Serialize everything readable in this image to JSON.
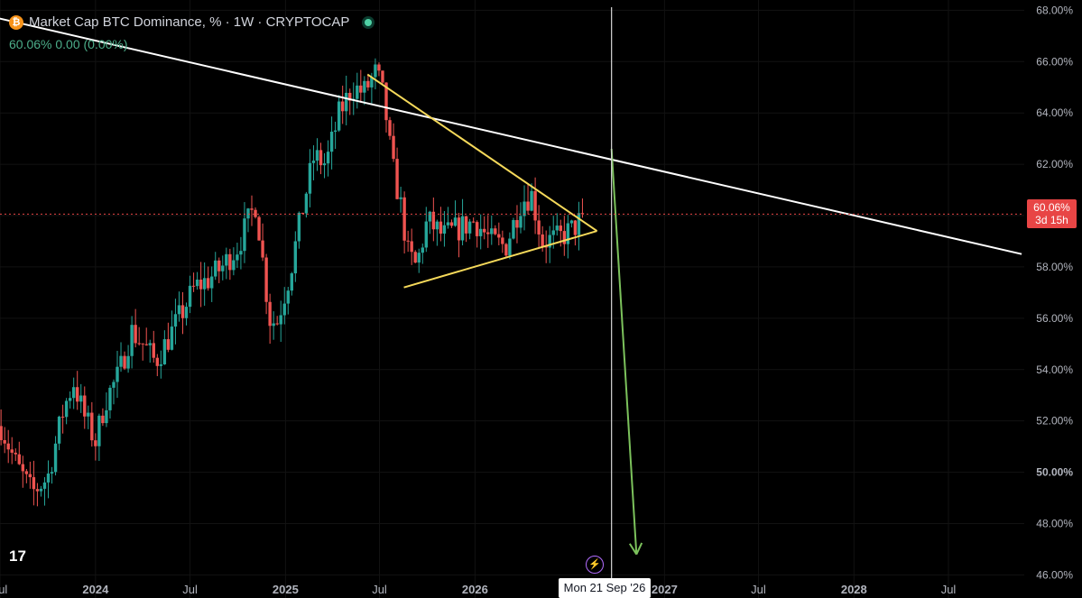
{
  "header": {
    "title": "Market Cap BTC Dominance, % · 1W · CRYPTOCAP",
    "quote": "60.06%  0.00 (0.00%)"
  },
  "price_tag": {
    "value": "60.06%",
    "countdown": "3d 15h",
    "color": "#e84545"
  },
  "crosshair_date": "Mon 21 Sep '26",
  "logo_text": "17",
  "colors": {
    "up": "#26a69a",
    "down": "#ef5350",
    "trendline": "#ffffff",
    "triangle": "#f5d95a",
    "arrow": "#7cc25c"
  },
  "chart_data": {
    "type": "candlestick",
    "title": "Market Cap BTC Dominance, % · 1W · CRYPTOCAP",
    "ylim": [
      45.1,
      68.4
    ],
    "xlim": [
      "2023-07-01",
      "2028-11-24"
    ],
    "y_ticks": [
      46,
      48,
      50,
      52,
      54,
      56,
      58,
      60,
      62,
      64,
      66,
      68
    ],
    "y_tick_labels": [
      "46.00%",
      "48.00%",
      "50.00%",
      "52.00%",
      "54.00%",
      "56.00%",
      "58.00%",
      "60.00%",
      "62.00%",
      "64.00%",
      "66.00%",
      "68.00%"
    ],
    "x_ticks": [
      {
        "label": "Jul",
        "date": "2023-07-01",
        "bold": false
      },
      {
        "label": "2024",
        "date": "2024-01-01",
        "bold": true
      },
      {
        "label": "Jul",
        "date": "2024-07-01",
        "bold": false
      },
      {
        "label": "2025",
        "date": "2025-01-01",
        "bold": true
      },
      {
        "label": "Jul",
        "date": "2025-07-01",
        "bold": false
      },
      {
        "label": "2026",
        "date": "2026-01-01",
        "bold": true
      },
      {
        "label": "2027",
        "date": "2027-01-01",
        "bold": true
      },
      {
        "label": "Jul",
        "date": "2027-07-01",
        "bold": false
      },
      {
        "label": "2028",
        "date": "2028-01-01",
        "bold": true
      },
      {
        "label": "Jul",
        "date": "2028-07-01",
        "bold": false
      }
    ],
    "close_path": [
      [
        "2023-07-03",
        51.8
      ],
      [
        "2023-08-01",
        50.3
      ],
      [
        "2023-09-01",
        49.2
      ],
      [
        "2023-10-01",
        49.8
      ],
      [
        "2023-11-01",
        52.5
      ],
      [
        "2023-11-20",
        53.5
      ],
      [
        "2023-12-10",
        52.2
      ],
      [
        "2024-01-01",
        51.2
      ],
      [
        "2024-01-20",
        52.8
      ],
      [
        "2024-02-15",
        53.8
      ],
      [
        "2024-03-10",
        55.5
      ],
      [
        "2024-04-01",
        55.0
      ],
      [
        "2024-04-25",
        54.3
      ],
      [
        "2024-05-20",
        55.2
      ],
      [
        "2024-06-15",
        56.2
      ],
      [
        "2024-07-10",
        57.2
      ],
      [
        "2024-08-05",
        57.5
      ],
      [
        "2024-09-01",
        58.0
      ],
      [
        "2024-10-01",
        58.8
      ],
      [
        "2024-11-05",
        60.5
      ],
      [
        "2024-12-01",
        56.0
      ],
      [
        "2024-12-15",
        55.8
      ],
      [
        "2025-01-10",
        57.8
      ],
      [
        "2025-02-05",
        60.5
      ],
      [
        "2025-02-25",
        62.3
      ],
      [
        "2025-03-20",
        62.0
      ],
      [
        "2025-04-15",
        64.0
      ],
      [
        "2025-05-10",
        65.0
      ],
      [
        "2025-06-01",
        64.8
      ],
      [
        "2025-06-25",
        65.6
      ],
      [
        "2025-07-10",
        64.5
      ],
      [
        "2025-07-25",
        62.0
      ],
      [
        "2025-08-10",
        60.5
      ],
      [
        "2025-08-25",
        58.5
      ],
      [
        "2025-09-10",
        58.0
      ],
      [
        "2025-10-01",
        59.8
      ],
      [
        "2025-11-01",
        59.2
      ],
      [
        "2025-12-01",
        59.5
      ],
      [
        "2026-01-01",
        59.8
      ],
      [
        "2026-02-01",
        59.0
      ],
      [
        "2026-03-01",
        58.8
      ],
      [
        "2026-04-01",
        60.6
      ],
      [
        "2026-04-20",
        60.8
      ],
      [
        "2026-05-10",
        59.0
      ],
      [
        "2026-06-10",
        59.1
      ],
      [
        "2026-07-10",
        59.5
      ],
      [
        "2026-08-01",
        60.06
      ]
    ],
    "annotations": [
      {
        "type": "trendline",
        "from": [
          "2023-05-14",
          67.9
        ],
        "to": [
          "2028-11-19",
          58.5
        ]
      },
      {
        "type": "triangle_upper",
        "from": [
          "2025-06-08",
          65.5
        ],
        "to": [
          "2026-08-24",
          59.4
        ]
      },
      {
        "type": "triangle_lower",
        "from": [
          "2025-08-17",
          57.2
        ],
        "to": [
          "2026-08-24",
          59.4
        ]
      },
      {
        "type": "arrow",
        "from": [
          "2026-09-21",
          62.6
        ],
        "to": [
          "2026-11-08",
          46.8
        ]
      },
      {
        "type": "vline",
        "date": "2026-09-21"
      },
      {
        "type": "hline",
        "value": 60.06
      }
    ]
  }
}
